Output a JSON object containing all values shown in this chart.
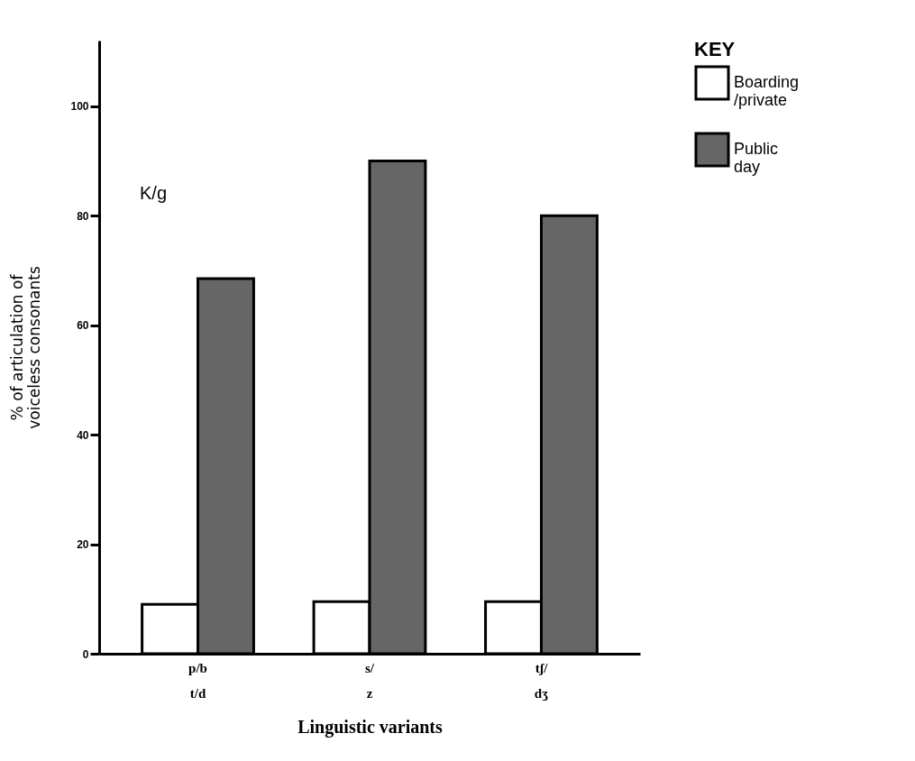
{
  "chart_data": {
    "type": "bar",
    "xlabel": "Linguistic variants",
    "ylabel": "% of articulation of voiceless consonants",
    "legend_title": "KEY",
    "categories": [
      "p/b t/d",
      "s/ z",
      "tʃ/ dʒ"
    ],
    "series": [
      {
        "name": "Boarding /private",
        "color": "#ffffff",
        "values": [
          9,
          9.5,
          9.5
        ]
      },
      {
        "name": "Public day",
        "color": "#666666",
        "values": [
          68.5,
          90,
          80
        ]
      }
    ],
    "ylim": [
      0,
      112
    ],
    "yticks": [
      0,
      20,
      40,
      60,
      80,
      100
    ],
    "grid": false,
    "legend": "right",
    "annotations": [
      "K/g"
    ]
  }
}
